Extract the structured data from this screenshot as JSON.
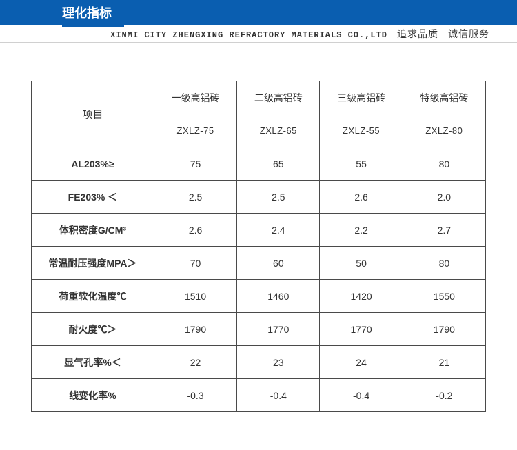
{
  "header": {
    "title": "理化指标",
    "company": "XINMI CITY ZHENGXING REFRACTORY MATERIALS CO.,LTD",
    "slogan1": "追求品质",
    "slogan2": "诚信服务"
  },
  "table": {
    "corner": "项目",
    "column_headers": [
      "一级高铝砖",
      "二级高铝砖",
      "三级高铝砖",
      "特级高铝砖"
    ],
    "column_codes": [
      "ZXLZ-75",
      "ZXLZ-65",
      "ZXLZ-55",
      "ZXLZ-80"
    ],
    "rows": [
      {
        "label": "AL203%≥",
        "values": [
          "75",
          "65",
          "55",
          "80"
        ]
      },
      {
        "label": "FE203% ＜",
        "values": [
          "2.5",
          "2.5",
          "2.6",
          "2.0"
        ]
      },
      {
        "label": "体积密度G/CM³",
        "values": [
          "2.6",
          "2.4",
          "2.2",
          "2.7"
        ]
      },
      {
        "label": "常温耐压强度MPA＞",
        "values": [
          "70",
          "60",
          "50",
          "80"
        ]
      },
      {
        "label": "荷重软化温度℃",
        "values": [
          "1510",
          "1460",
          "1420",
          "1550"
        ]
      },
      {
        "label": "耐火度℃＞",
        "values": [
          "1790",
          "1770",
          "1770",
          "1790"
        ]
      },
      {
        "label": "显气孔率%＜",
        "values": [
          "22",
          "23",
          "24",
          "21"
        ]
      },
      {
        "label": "线变化率%",
        "values": [
          "-0.3",
          "-0.4",
          "-0.4",
          "-0.2"
        ]
      }
    ]
  },
  "style": {
    "header_bg": "#0a5eb0",
    "border_color": "#4a4a4a"
  }
}
